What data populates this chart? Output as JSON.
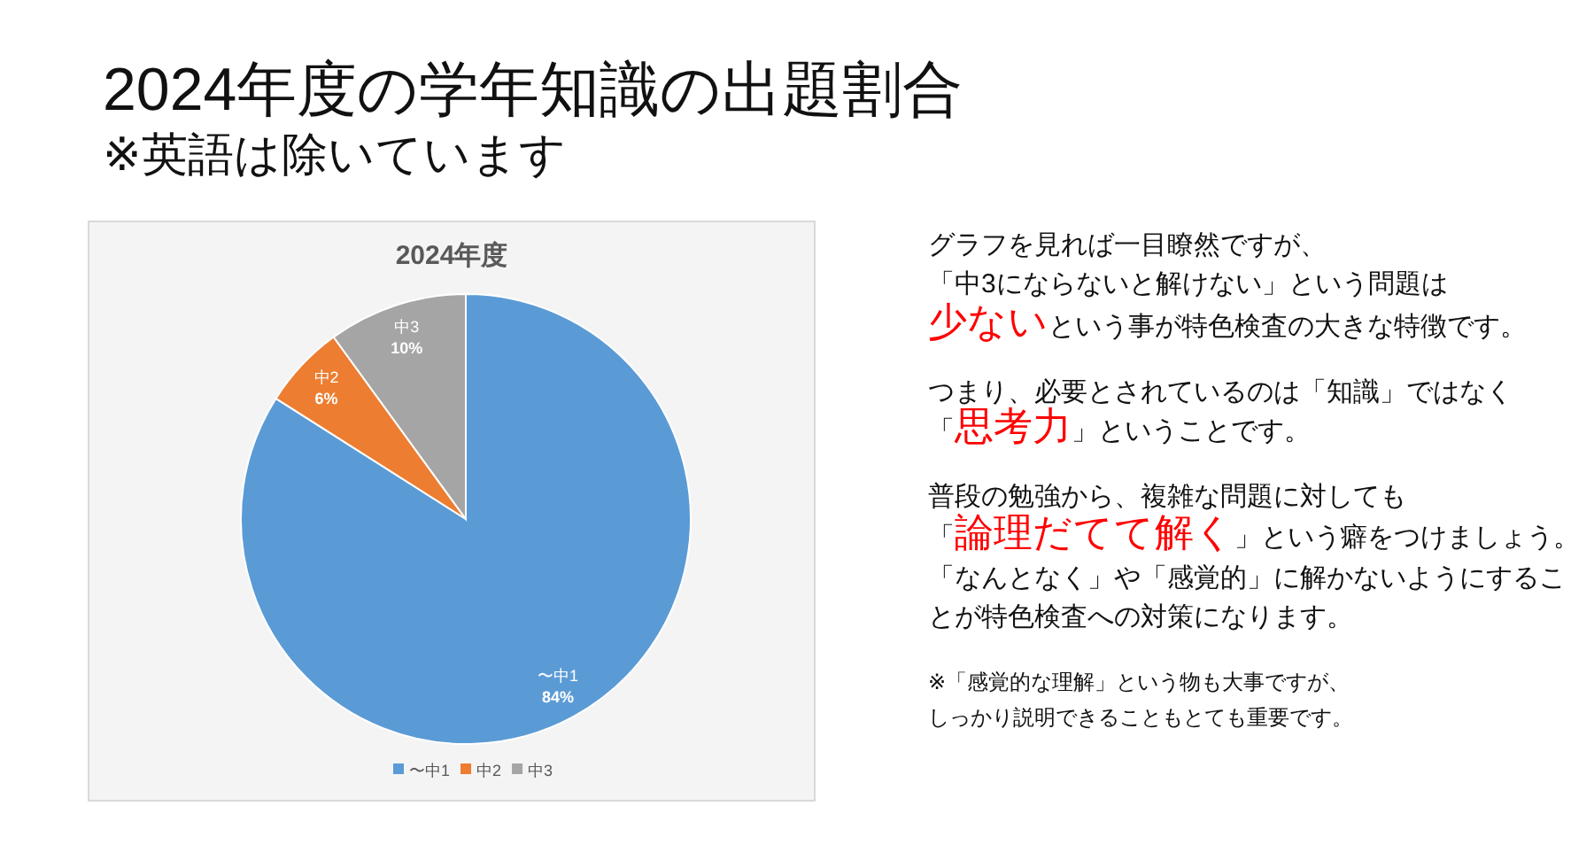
{
  "chart_data": {
    "type": "pie",
    "title": "2024年度の学年知識の出題割合",
    "subtitle": "※英語は除いています",
    "categories": [
      "〜中1",
      "中2",
      "中3"
    ],
    "values": [
      84,
      6,
      10
    ],
    "colors": [
      "#5b9bd5",
      "#ed7d31",
      "#a5a5a5"
    ],
    "value_labels": [
      "84%",
      "6%",
      "10%"
    ],
    "legend": "bottom",
    "annotations": [
      "2024年度",
      "グラフを見れば一目瞭然ですが、",
      "「中3にならないと解けない」という問題は",
      "少ない",
      "という事が特色検査の大きな特徴です。",
      "つまり、必要とされているのは「知識」ではなく",
      "「",
      "思考力",
      "」ということです。",
      "普段の勉強から、複雑な問題に対しても",
      "「",
      "論理だてて解く",
      "」という癖をつけましょう。",
      "「なんとなく」や「感覚的」に解かないようにするこ",
      "とが特色検査への対策になります。",
      "※「感覚的な理解」という物も大事ですが、",
      "しっかり説明できることもとても重要です。"
    ]
  }
}
